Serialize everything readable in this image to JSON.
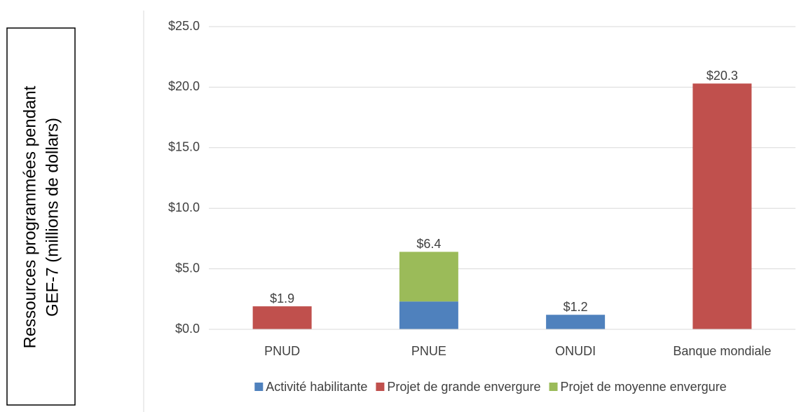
{
  "chart_data": {
    "type": "stacked_bar",
    "ylabel": [
      "Ressources programmées pendant",
      "GEF-7 (millions de dollars)"
    ],
    "categories": [
      "PNUD",
      "PNUE",
      "ONUDI",
      "Banque mondiale"
    ],
    "series": [
      {
        "name": "Activité habilitante",
        "color": "#4f81bd",
        "values": [
          null,
          2.3,
          1.2,
          null
        ]
      },
      {
        "name": "Projet de grande envergure",
        "color": "#c0504d",
        "values": [
          1.9,
          null,
          null,
          20.3
        ]
      },
      {
        "name": "Projet de moyenne envergure",
        "color": "#9bbb59",
        "values": [
          null,
          4.1,
          null,
          null
        ]
      }
    ],
    "totals": [
      1.9,
      6.4,
      1.2,
      20.3
    ],
    "total_labels": [
      "$1.9",
      "$6.4",
      "$1.2",
      "$20.3"
    ],
    "ylim": [
      0,
      25
    ],
    "yticks": [
      {
        "value": 0,
        "label": "$0.0"
      },
      {
        "value": 5,
        "label": "$5.0"
      },
      {
        "value": 10,
        "label": "$10.0"
      },
      {
        "value": 15,
        "label": "$15.0"
      },
      {
        "value": 20,
        "label": "$20.0"
      },
      {
        "value": 25,
        "label": "$25.0"
      }
    ],
    "grid": true,
    "legend": "bottom"
  }
}
